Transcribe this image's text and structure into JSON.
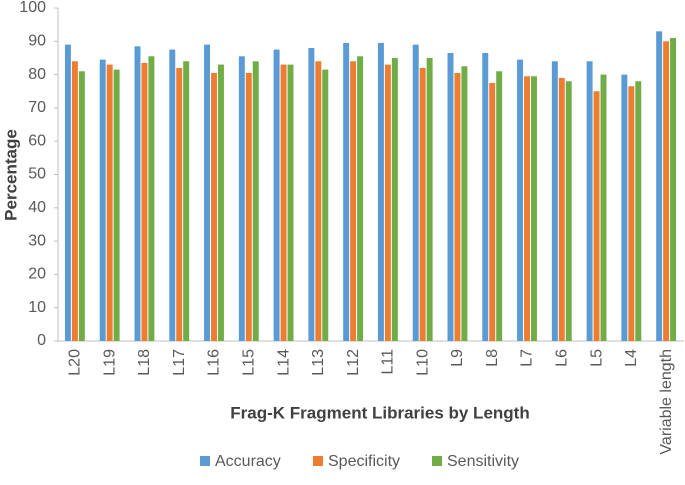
{
  "chart_data": {
    "type": "bar",
    "x_label": "Frag-K Fragment Libraries by Length",
    "y_label": "Percentage",
    "categories": [
      "L20",
      "L19",
      "L18",
      "L17",
      "L16",
      "L15",
      "L14",
      "L13",
      "L12",
      "L11",
      "L10",
      "L9",
      "L8",
      "L7",
      "L6",
      "L5",
      "L4",
      "Variable length"
    ],
    "series": [
      {
        "name": "Accuracy",
        "color": "#5b9bd5",
        "values": [
          89,
          84.5,
          88.5,
          87.5,
          89,
          85.5,
          87.5,
          88,
          89.5,
          89.5,
          89,
          86.5,
          86.5,
          84.5,
          84,
          84,
          80,
          93
        ]
      },
      {
        "name": "Specificity",
        "color": "#ed7d31",
        "values": [
          84,
          83,
          83.5,
          82,
          80.5,
          80.5,
          83,
          84,
          84,
          83,
          82,
          80.5,
          77.5,
          79.5,
          79,
          75,
          76.5,
          90
        ]
      },
      {
        "name": "Sensitivity",
        "color": "#70ad47",
        "values": [
          81,
          81.5,
          85.5,
          84,
          83,
          84,
          83,
          81.5,
          85.5,
          85,
          85,
          82.5,
          81,
          79.5,
          78,
          80,
          78,
          91
        ]
      }
    ],
    "ylim": [
      0,
      100
    ],
    "yticks": [
      0,
      10,
      20,
      30,
      40,
      50,
      60,
      70,
      80,
      90,
      100
    ],
    "legend": "bottom"
  }
}
